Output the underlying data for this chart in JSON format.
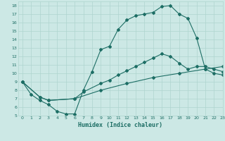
{
  "background_color": "#cce8e5",
  "line_color": "#1d6e65",
  "grid_color": "#afd4cf",
  "xlabel": "Humidex (Indice chaleur)",
  "xlim": [
    -0.5,
    23
  ],
  "ylim": [
    5,
    18.5
  ],
  "yticks": [
    5,
    6,
    7,
    8,
    9,
    10,
    11,
    12,
    13,
    14,
    15,
    16,
    17,
    18
  ],
  "xticks": [
    0,
    1,
    2,
    3,
    4,
    5,
    6,
    7,
    8,
    9,
    10,
    11,
    12,
    13,
    14,
    15,
    16,
    17,
    18,
    19,
    20,
    21,
    22,
    23
  ],
  "line1_x": [
    0,
    1,
    2,
    3,
    4,
    5,
    6,
    7,
    8,
    9,
    10,
    11,
    12,
    13,
    14,
    15,
    16,
    17,
    18,
    19,
    20,
    21,
    22,
    23
  ],
  "line1_y": [
    9.0,
    7.5,
    6.8,
    6.3,
    5.5,
    5.2,
    5.2,
    8.0,
    10.2,
    12.8,
    13.2,
    15.2,
    16.3,
    16.8,
    17.0,
    17.2,
    17.9,
    18.0,
    17.0,
    16.5,
    14.2,
    10.5,
    10.0,
    9.8
  ],
  "line2_x": [
    0,
    2,
    3,
    6,
    7,
    9,
    10,
    11,
    12,
    13,
    14,
    15,
    16,
    17,
    18,
    19,
    20,
    21,
    22,
    23
  ],
  "line2_y": [
    9.0,
    7.2,
    6.8,
    7.0,
    7.8,
    8.8,
    9.2,
    9.8,
    10.3,
    10.8,
    11.3,
    11.8,
    12.3,
    12.0,
    11.2,
    10.5,
    10.8,
    10.8,
    10.5,
    10.2
  ],
  "line3_x": [
    0,
    2,
    3,
    6,
    9,
    12,
    15,
    18,
    21,
    23
  ],
  "line3_y": [
    9.0,
    7.2,
    6.8,
    7.0,
    8.0,
    8.8,
    9.5,
    10.0,
    10.5,
    10.8
  ],
  "marker": "D",
  "markersize": 2.0,
  "linewidth": 0.8,
  "tick_fontsize": 4.5,
  "xlabel_fontsize": 6.0
}
